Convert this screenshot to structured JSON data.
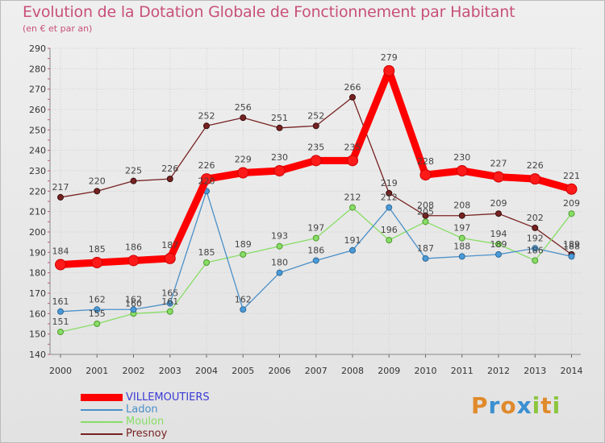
{
  "chart_data": {
    "type": "line",
    "title": "Evolution de la Dotation Globale de Fonctionnement par Habitant",
    "subtitle": "(en € et par an)",
    "xlabel": "",
    "ylabel": "",
    "x": [
      "2000",
      "2001",
      "2002",
      "2003",
      "2004",
      "2005",
      "2006",
      "2007",
      "2008",
      "2009",
      "2010",
      "2011",
      "2012",
      "2013",
      "2014"
    ],
    "ylim": [
      140,
      290
    ],
    "ytick_step": 10,
    "grid": true,
    "legend_position": "bottom-left",
    "series": [
      {
        "name": "VILLEMOUTIERS",
        "color": "#ff0000",
        "values": [
          184,
          185,
          186,
          187,
          226,
          229,
          230,
          235,
          235,
          279,
          228,
          230,
          227,
          226,
          221
        ]
      },
      {
        "name": "Ladon",
        "color": "#4a8fc8",
        "values": [
          161,
          162,
          162,
          165,
          220,
          162,
          180,
          186,
          191,
          212,
          187,
          188,
          189,
          192,
          188
        ]
      },
      {
        "name": "Moulon",
        "color": "#88dd66",
        "values": [
          151,
          155,
          160,
          161,
          185,
          189,
          193,
          197,
          212,
          196,
          205,
          197,
          194,
          186,
          209
        ]
      },
      {
        "name": "Presnoy",
        "color": "#772222",
        "values": [
          217,
          220,
          225,
          226,
          252,
          256,
          251,
          252,
          266,
          219,
          208,
          208,
          209,
          202,
          189
        ]
      }
    ]
  },
  "branding": {
    "logo_text": "Proxiti",
    "logo_letters": [
      {
        "ch": "P",
        "color": "#e08a2c"
      },
      {
        "ch": "r",
        "color": "#3a8fd0"
      },
      {
        "ch": "o",
        "color": "#e08a2c"
      },
      {
        "ch": "x",
        "color": "#3a8fd0"
      },
      {
        "ch": "i",
        "color": "#8cc63f"
      },
      {
        "ch": "t",
        "color": "#e08a2c"
      },
      {
        "ch": "i",
        "color": "#8cc63f"
      }
    ]
  }
}
